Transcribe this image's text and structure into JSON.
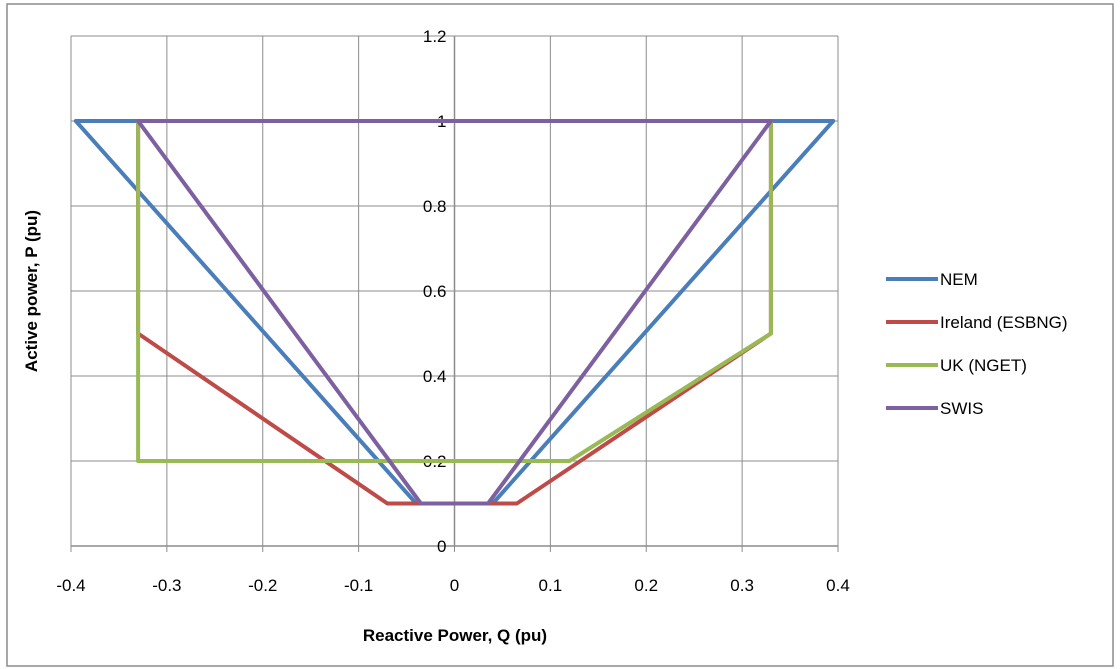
{
  "chart_data": {
    "type": "line",
    "title": "",
    "xlabel": "Reactive Power, Q (pu)",
    "ylabel": "Active power, P (pu)",
    "xlim": [
      -0.4,
      0.4
    ],
    "ylim": [
      0,
      1.2
    ],
    "xticks": [
      -0.4,
      -0.3,
      -0.2,
      -0.1,
      0,
      0.1,
      0.2,
      0.3,
      0.4
    ],
    "yticks": [
      0,
      0.2,
      0.4,
      0.6,
      0.8,
      1,
      1.2
    ],
    "xtick_labels": [
      "-0.4",
      "-0.3",
      "-0.2",
      "-0.1",
      "0",
      "0.1",
      "0.2",
      "0.3",
      "0.4"
    ],
    "ytick_labels": [
      "0",
      "0.2",
      "0.4",
      "0.6",
      "0.8",
      "1",
      "1.2"
    ],
    "grid": true,
    "legend_position": "right",
    "series": [
      {
        "name": "NEM",
        "color": "#4a7ebb",
        "points": [
          [
            -0.395,
            1
          ],
          [
            0.395,
            1
          ],
          [
            0.04,
            0.1
          ],
          [
            -0.04,
            0.1
          ],
          [
            -0.395,
            1
          ]
        ]
      },
      {
        "name": "Ireland (ESBNG)",
        "color": "#be4b48",
        "points": [
          [
            -0.33,
            1
          ],
          [
            -0.33,
            0.5
          ],
          [
            -0.07,
            0.1
          ],
          [
            0.065,
            0.1
          ],
          [
            0.33,
            0.5
          ],
          [
            0.33,
            1
          ]
        ]
      },
      {
        "name": "UK (NGET)",
        "color": "#98b954",
        "points": [
          [
            -0.33,
            1
          ],
          [
            -0.33,
            0.2
          ],
          [
            0.12,
            0.2
          ],
          [
            0.33,
            0.5
          ],
          [
            0.33,
            1
          ]
        ]
      },
      {
        "name": "SWIS",
        "color": "#7d60a0",
        "points": [
          [
            -0.33,
            1
          ],
          [
            0.33,
            1
          ],
          [
            0.035,
            0.1
          ],
          [
            -0.035,
            0.1
          ],
          [
            -0.33,
            1
          ]
        ]
      }
    ]
  }
}
